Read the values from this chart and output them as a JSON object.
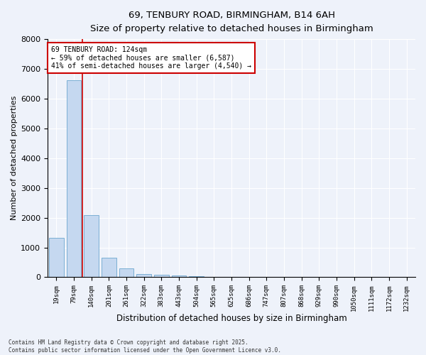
{
  "title_line1": "69, TENBURY ROAD, BIRMINGHAM, B14 6AH",
  "title_line2": "Size of property relative to detached houses in Birmingham",
  "xlabel": "Distribution of detached houses by size in Birmingham",
  "ylabel": "Number of detached properties",
  "bar_color": "#c5d8f0",
  "bar_edge_color": "#7bafd4",
  "background_color": "#eef2fa",
  "grid_color": "#ffffff",
  "categories": [
    "19sqm",
    "79sqm",
    "140sqm",
    "201sqm",
    "261sqm",
    "322sqm",
    "383sqm",
    "443sqm",
    "504sqm",
    "565sqm",
    "625sqm",
    "686sqm",
    "747sqm",
    "807sqm",
    "868sqm",
    "929sqm",
    "990sqm",
    "1050sqm",
    "1111sqm",
    "1172sqm",
    "1232sqm"
  ],
  "values": [
    1320,
    6620,
    2080,
    650,
    290,
    115,
    75,
    55,
    40,
    0,
    0,
    0,
    0,
    0,
    0,
    0,
    0,
    0,
    0,
    0,
    0
  ],
  "ylim": [
    0,
    8000
  ],
  "yticks": [
    0,
    1000,
    2000,
    3000,
    4000,
    5000,
    6000,
    7000,
    8000
  ],
  "property_line_color": "#cc0000",
  "annotation_text": "69 TENBURY ROAD: 124sqm\n← 59% of detached houses are smaller (6,587)\n41% of semi-detached houses are larger (4,540) →",
  "annotation_box_color": "#ffffff",
  "annotation_box_edge_color": "#cc0000",
  "footnote": "Contains HM Land Registry data © Crown copyright and database right 2025.\nContains public sector information licensed under the Open Government Licence v3.0."
}
